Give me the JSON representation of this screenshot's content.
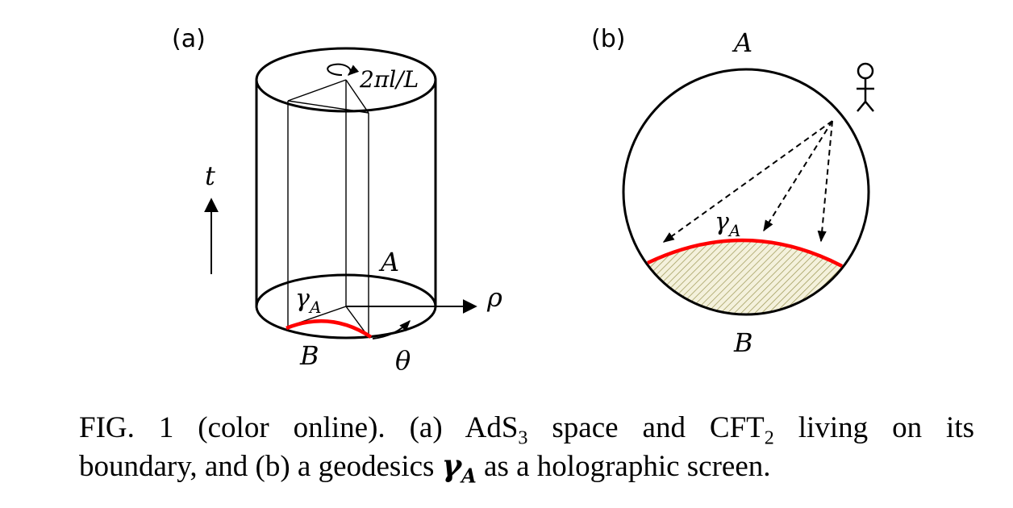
{
  "panel_a": {
    "label": "(a)",
    "rotation_label": "2πl/L",
    "time_axis_label": "t",
    "radial_axis_label": "ρ",
    "angle_label": "θ",
    "region_a_label": "A",
    "region_b_label": "B",
    "geodesic_label_base": "γ",
    "geodesic_label_sub": "A"
  },
  "panel_b": {
    "label": "(b)",
    "region_a_label": "A",
    "region_b_label": "B",
    "geodesic_label_base": "γ",
    "geodesic_label_sub": "A"
  },
  "colors": {
    "geodesic": "#ff0000",
    "hatch": "#9a9450",
    "hatch_bg": "#f4f1dc"
  },
  "icons": {
    "observer": "stick-figure-icon"
  },
  "caption": {
    "line1_prefix": "FIG. 1 (color online).   (a) AdS",
    "ads_sub": "3",
    "line1_mid": " space and CFT",
    "cft_sub": "2",
    "line1_suffix": " living on its",
    "line2_prefix": "boundary, and (b) a geodesics ",
    "gamma_base": "γ",
    "gamma_sub": "A",
    "line2_suffix": " as a holographic screen."
  }
}
